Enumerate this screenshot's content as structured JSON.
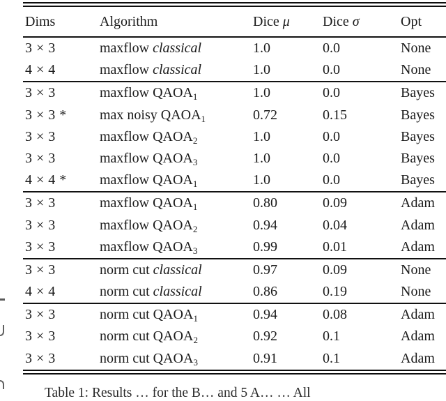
{
  "page": {
    "background": "#ffffff",
    "text_color": "#1b1b1b",
    "rule_color": "#111111"
  },
  "table": {
    "header": {
      "columns": [
        {
          "label": "Dims",
          "math": ""
        },
        {
          "label": "Algorithm",
          "math": ""
        },
        {
          "label": "Dice ",
          "math": "μ"
        },
        {
          "label": "Dice ",
          "math": "σ"
        },
        {
          "label": "Opt",
          "math": ""
        }
      ]
    },
    "sections": [
      {
        "rows": [
          {
            "dims": "3 × 3",
            "algo": "maxflow ",
            "algo_em": "classical",
            "algo_sub": "",
            "mu": "1.0",
            "sigma": "0.0",
            "opt": "None"
          },
          {
            "dims": "4 × 4",
            "algo": "maxflow ",
            "algo_em": "classical",
            "algo_sub": "",
            "mu": "1.0",
            "sigma": "0.0",
            "opt": "None"
          }
        ]
      },
      {
        "rows": [
          {
            "dims": "3 × 3",
            "algo": "maxflow QAOA",
            "algo_em": "",
            "algo_sub": "1",
            "mu": "1.0",
            "sigma": "0.0",
            "opt": "Bayes"
          },
          {
            "dims": "3 × 3 *",
            "algo": "max noisy QAOA",
            "algo_em": "",
            "algo_sub": "1",
            "mu": "0.72",
            "sigma": "0.15",
            "opt": "Bayes"
          },
          {
            "dims": "3 × 3",
            "algo": "maxflow QAOA",
            "algo_em": "",
            "algo_sub": "2",
            "mu": "1.0",
            "sigma": "0.0",
            "opt": "Bayes"
          },
          {
            "dims": "3 × 3",
            "algo": "maxflow QAOA",
            "algo_em": "",
            "algo_sub": "3",
            "mu": "1.0",
            "sigma": "0.0",
            "opt": "Bayes"
          },
          {
            "dims": "4 × 4 *",
            "algo": "maxflow QAOA",
            "algo_em": "",
            "algo_sub": "1",
            "mu": "1.0",
            "sigma": "0.0",
            "opt": "Bayes"
          }
        ]
      },
      {
        "rows": [
          {
            "dims": "3 × 3",
            "algo": "maxflow QAOA",
            "algo_em": "",
            "algo_sub": "1",
            "mu": "0.80",
            "sigma": "0.09",
            "opt": "Adam"
          },
          {
            "dims": "3 × 3",
            "algo": "maxflow QAOA",
            "algo_em": "",
            "algo_sub": "2",
            "mu": "0.94",
            "sigma": "0.04",
            "opt": "Adam"
          },
          {
            "dims": "3 × 3",
            "algo": "maxflow QAOA",
            "algo_em": "",
            "algo_sub": "3",
            "mu": "0.99",
            "sigma": "0.01",
            "opt": "Adam"
          }
        ]
      },
      {
        "rows": [
          {
            "dims": "3 × 3",
            "algo": "norm cut ",
            "algo_em": "classical",
            "algo_sub": "",
            "mu": "0.97",
            "sigma": "0.09",
            "opt": "None"
          },
          {
            "dims": "4 × 4",
            "algo": "norm cut ",
            "algo_em": "classical",
            "algo_sub": "",
            "mu": "0.86",
            "sigma": "0.19",
            "opt": "None"
          }
        ]
      },
      {
        "rows": [
          {
            "dims": "3 × 3",
            "algo": "norm cut QAOA",
            "algo_em": "",
            "algo_sub": "1",
            "mu": "0.94",
            "sigma": "0.08",
            "opt": "Adam"
          },
          {
            "dims": "3 × 3",
            "algo": "norm cut QAOA",
            "algo_em": "",
            "algo_sub": "2",
            "mu": "0.92",
            "sigma": "0.1",
            "opt": "Adam"
          },
          {
            "dims": "3 × 3",
            "algo": "norm cut QAOA",
            "algo_em": "",
            "algo_sub": "3",
            "mu": "0.91",
            "sigma": "0.1",
            "opt": "Adam"
          }
        ]
      }
    ]
  },
  "caption_fragment": "Table 1: Results … for the B… and 5 A… … All"
}
